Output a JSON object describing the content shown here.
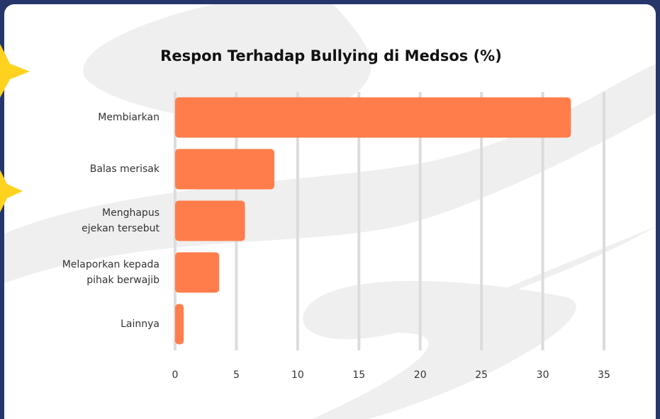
{
  "chart_data": {
    "type": "bar",
    "orientation": "horizontal",
    "title": "Respon Terhadap Bullying di Medsos (%)",
    "categories": [
      "Membiarkan",
      "Balas merisak",
      "Menghapus\nejekan tersebut",
      "Melaporkan kepada\npihak berwajib",
      "Lainnya"
    ],
    "values": [
      32.3,
      8.1,
      5.7,
      3.6,
      0.7
    ],
    "color": "#ff7d4b",
    "xlim": [
      0,
      35
    ],
    "xticks": [
      0,
      5,
      10,
      15,
      20,
      25,
      30,
      35
    ],
    "grid": true
  }
}
